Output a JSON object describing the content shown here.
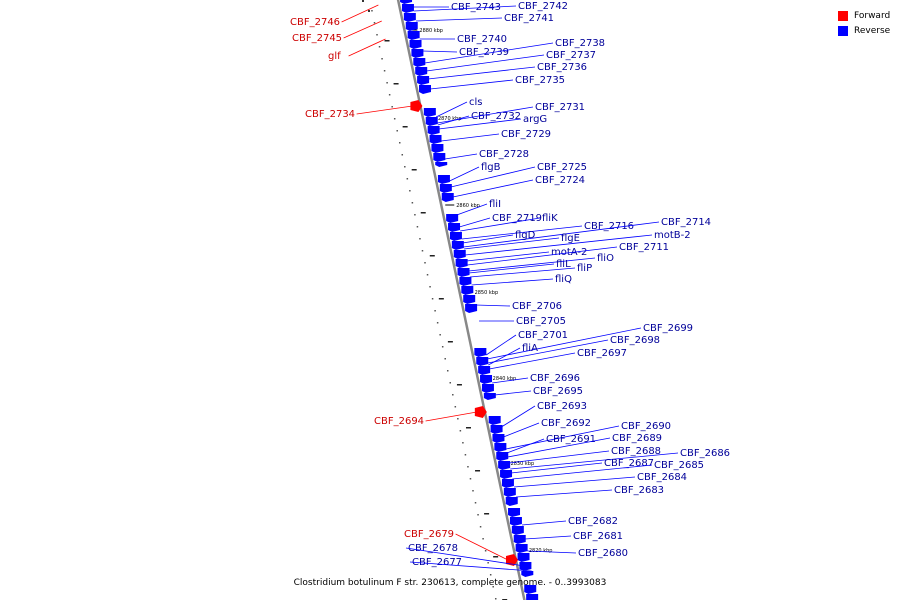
{
  "colors": {
    "forward": "#ff0000",
    "reverse": "#0000ff",
    "label_forward": "#cc0000",
    "label_reverse": "#000099",
    "backbone": "#888888"
  },
  "legend": {
    "forward_label": "Forward",
    "reverse_label": "Reverse"
  },
  "title": "Clostridium botulinum F str. 230613, complete genome. - 0..3993083",
  "ticks": [
    "2880 kbp",
    "2870 kbp",
    "2860 kbp",
    "2850 kbp",
    "2840 kbp",
    "2830 kbp",
    "2820 kbp"
  ],
  "genes": [
    {
      "name": "CBF_2746",
      "strand": "forward"
    },
    {
      "name": "CBF_2745",
      "strand": "forward"
    },
    {
      "name": "glf",
      "strand": "forward"
    },
    {
      "name": "CBF_2743",
      "strand": "reverse"
    },
    {
      "name": "CBF_2742",
      "strand": "reverse"
    },
    {
      "name": "CBF_2741",
      "strand": "reverse"
    },
    {
      "name": "CBF_2740",
      "strand": "reverse"
    },
    {
      "name": "CBF_2739",
      "strand": "reverse"
    },
    {
      "name": "CBF_2738",
      "strand": "reverse"
    },
    {
      "name": "CBF_2737",
      "strand": "reverse"
    },
    {
      "name": "CBF_2736",
      "strand": "reverse"
    },
    {
      "name": "CBF_2735",
      "strand": "reverse"
    },
    {
      "name": "CBF_2734",
      "strand": "forward"
    },
    {
      "name": "cls",
      "strand": "reverse"
    },
    {
      "name": "CBF_2732",
      "strand": "reverse"
    },
    {
      "name": "argG",
      "strand": "reverse"
    },
    {
      "name": "CBF_2731",
      "strand": "reverse"
    },
    {
      "name": "CBF_2729",
      "strand": "reverse"
    },
    {
      "name": "CBF_2728",
      "strand": "reverse"
    },
    {
      "name": "flgB",
      "strand": "reverse"
    },
    {
      "name": "CBF_2725",
      "strand": "reverse"
    },
    {
      "name": "CBF_2724",
      "strand": "reverse"
    },
    {
      "name": "fliI",
      "strand": "reverse"
    },
    {
      "name": "CBF_2719",
      "strand": "reverse"
    },
    {
      "name": "fliK",
      "strand": "reverse"
    },
    {
      "name": "CBF_2716",
      "strand": "reverse"
    },
    {
      "name": "CBF_2714",
      "strand": "reverse"
    },
    {
      "name": "flgD",
      "strand": "reverse"
    },
    {
      "name": "flgE",
      "strand": "reverse"
    },
    {
      "name": "motB-2",
      "strand": "reverse"
    },
    {
      "name": "motA-2",
      "strand": "reverse"
    },
    {
      "name": "CBF_2711",
      "strand": "reverse"
    },
    {
      "name": "fliO",
      "strand": "reverse"
    },
    {
      "name": "fliL",
      "strand": "reverse"
    },
    {
      "name": "fliP",
      "strand": "reverse"
    },
    {
      "name": "fliQ",
      "strand": "reverse"
    },
    {
      "name": "CBF_2706",
      "strand": "reverse"
    },
    {
      "name": "CBF_2705",
      "strand": "reverse"
    },
    {
      "name": "CBF_2701",
      "strand": "reverse"
    },
    {
      "name": "CBF_2699",
      "strand": "reverse"
    },
    {
      "name": "CBF_2698",
      "strand": "reverse"
    },
    {
      "name": "fliA",
      "strand": "reverse"
    },
    {
      "name": "CBF_2697",
      "strand": "reverse"
    },
    {
      "name": "CBF_2696",
      "strand": "reverse"
    },
    {
      "name": "CBF_2695",
      "strand": "reverse"
    },
    {
      "name": "CBF_2694",
      "strand": "forward"
    },
    {
      "name": "CBF_2693",
      "strand": "reverse"
    },
    {
      "name": "CBF_2692",
      "strand": "reverse"
    },
    {
      "name": "CBF_2690",
      "strand": "reverse"
    },
    {
      "name": "CBF_2691",
      "strand": "reverse"
    },
    {
      "name": "CBF_2689",
      "strand": "reverse"
    },
    {
      "name": "CBF_2688",
      "strand": "reverse"
    },
    {
      "name": "CBF_2686",
      "strand": "reverse"
    },
    {
      "name": "CBF_2687",
      "strand": "reverse"
    },
    {
      "name": "CBF_2685",
      "strand": "reverse"
    },
    {
      "name": "CBF_2684",
      "strand": "reverse"
    },
    {
      "name": "CBF_2683",
      "strand": "reverse"
    },
    {
      "name": "CBF_2682",
      "strand": "reverse"
    },
    {
      "name": "CBF_2681",
      "strand": "reverse"
    },
    {
      "name": "CBF_2680",
      "strand": "reverse"
    },
    {
      "name": "CBF_2679",
      "strand": "forward"
    },
    {
      "name": "CBF_2678",
      "strand": "reverse"
    },
    {
      "name": "CBF_2677",
      "strand": "reverse"
    }
  ]
}
